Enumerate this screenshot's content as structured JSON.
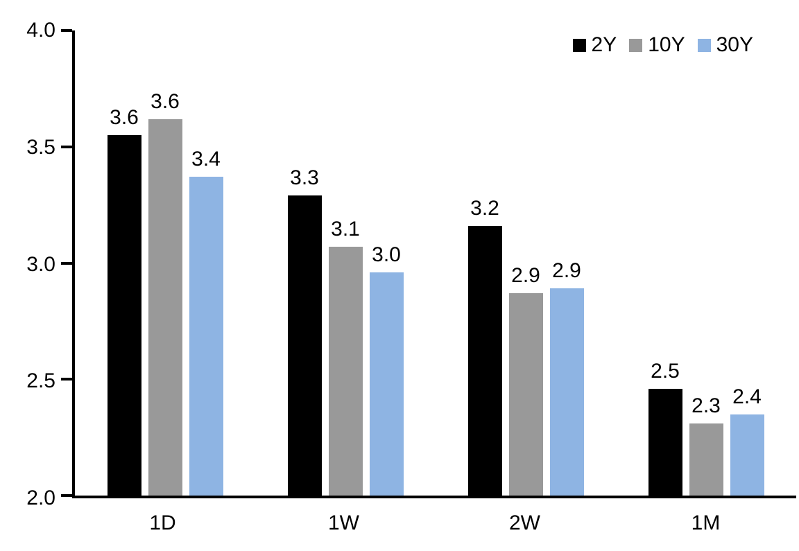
{
  "chart_data": {
    "type": "bar",
    "title": "",
    "xlabel": "",
    "ylabel": "",
    "categories": [
      "1D",
      "1W",
      "2W",
      "1M"
    ],
    "series": [
      {
        "name": "2Y",
        "color": "#000000",
        "values": [
          3.55,
          3.29,
          3.16,
          2.46
        ],
        "labels": [
          "3.6",
          "3.3",
          "3.2",
          "2.5"
        ]
      },
      {
        "name": "10Y",
        "color": "#999999",
        "values": [
          3.62,
          3.07,
          2.87,
          2.31
        ],
        "labels": [
          "3.6",
          "3.1",
          "2.9",
          "2.3"
        ]
      },
      {
        "name": "30Y",
        "color": "#8EB4E3",
        "values": [
          3.37,
          2.96,
          2.89,
          2.35
        ],
        "labels": [
          "3.4",
          "3.0",
          "2.9",
          "2.4"
        ]
      }
    ],
    "ylim": [
      2.0,
      4.0
    ],
    "yticks": [
      {
        "value": 4.0,
        "label": "4.0"
      },
      {
        "value": 3.5,
        "label": "3.5"
      },
      {
        "value": 3.0,
        "label": "3.0"
      },
      {
        "value": 2.5,
        "label": "2.5"
      },
      {
        "value": 2.0,
        "label": "2.0"
      }
    ],
    "grid": false,
    "legend_position": "top-right",
    "axis_color": "#000000",
    "label_color": "#000000"
  }
}
